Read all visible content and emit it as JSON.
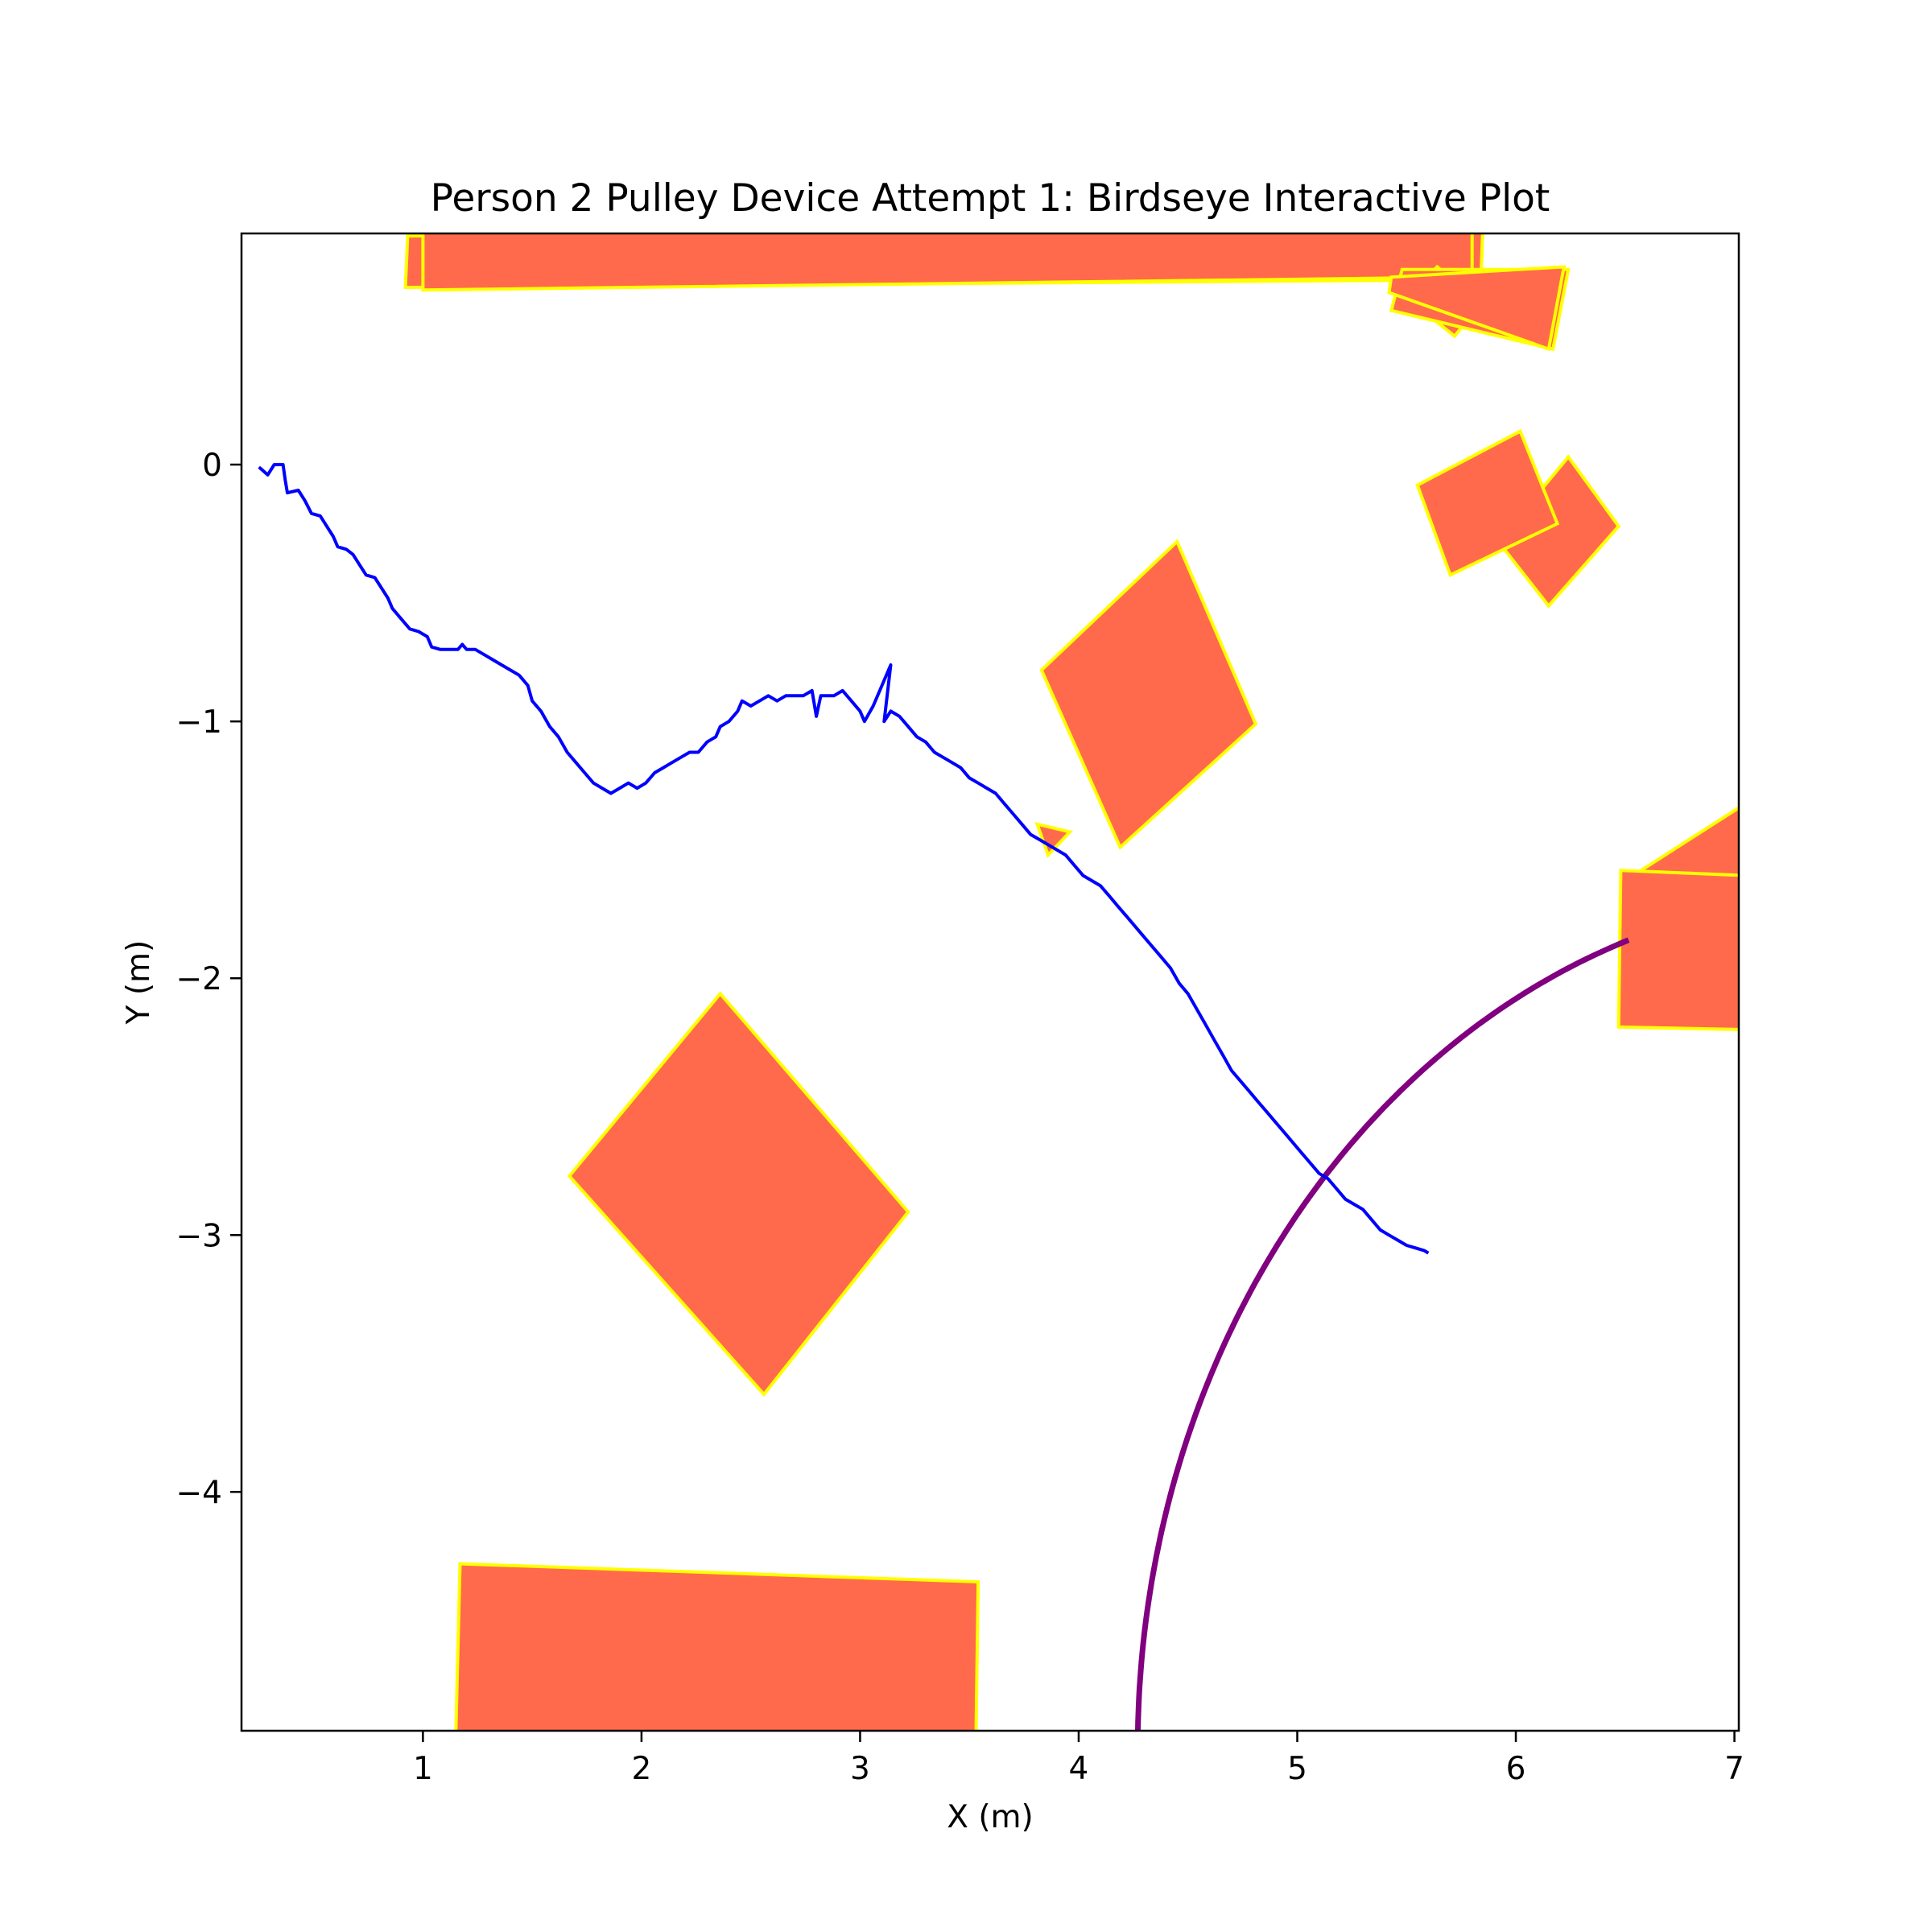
{
  "chart_data": {
    "type": "scatter",
    "title": "Person 2 Pulley Device Attempt 1: Birdseye Interactive Plot",
    "xlabel": "X (m)",
    "ylabel": "Y (m)",
    "xlim": [
      0.17,
      7.02
    ],
    "ylim": [
      -4.93,
      0.9
    ],
    "xticks": [
      1,
      2,
      3,
      4,
      5,
      6,
      7
    ],
    "yticks": [
      0,
      -1,
      -2,
      -3,
      -4
    ],
    "grid": false,
    "colors": {
      "obstacle_fill": "#ff6a4d",
      "obstacle_edge": "#ffff00",
      "path": "#0000ff",
      "arc": "#800080"
    },
    "obstacles": [
      [
        [
          0.93,
          0.89
        ],
        [
          5.85,
          0.95
        ],
        [
          5.84,
          0.72
        ],
        [
          0.92,
          0.69
        ]
      ],
      [
        [
          1.0,
          0.92
        ],
        [
          5.8,
          0.92
        ],
        [
          5.8,
          0.73
        ],
        [
          1.0,
          0.68
        ]
      ],
      [
        [
          5.5,
          0.65
        ],
        [
          5.72,
          0.5
        ],
        [
          5.84,
          0.63
        ],
        [
          5.64,
          0.77
        ]
      ],
      [
        [
          5.48,
          0.76
        ],
        [
          6.24,
          0.76
        ],
        [
          6.17,
          0.45
        ],
        [
          5.43,
          0.6
        ]
      ],
      [
        [
          5.43,
          0.73
        ],
        [
          6.22,
          0.77
        ],
        [
          6.15,
          0.45
        ],
        [
          5.42,
          0.67
        ]
      ],
      [
        [
          6.24,
          0.03
        ],
        [
          6.47,
          -0.24
        ],
        [
          6.15,
          -0.55
        ],
        [
          5.92,
          -0.3
        ]
      ],
      [
        [
          5.55,
          -0.08
        ],
        [
          6.02,
          0.13
        ],
        [
          6.19,
          -0.23
        ],
        [
          5.7,
          -0.43
        ]
      ],
      [
        [
          3.83,
          -0.8
        ],
        [
          4.45,
          -0.3
        ],
        [
          4.81,
          -1.01
        ],
        [
          4.19,
          -1.49
        ]
      ],
      [
        [
          3.81,
          -1.4
        ],
        [
          3.96,
          -1.43
        ],
        [
          3.86,
          -1.52
        ]
      ],
      [
        [
          1.67,
          -2.77
        ],
        [
          2.36,
          -2.06
        ],
        [
          3.22,
          -2.91
        ],
        [
          2.56,
          -3.62
        ]
      ],
      [
        [
          1.17,
          -4.28
        ],
        [
          3.54,
          -4.35
        ],
        [
          3.53,
          -4.96
        ],
        [
          1.15,
          -4.96
        ]
      ],
      [
        [
          6.5,
          -1.62
        ],
        [
          7.05,
          -1.32
        ],
        [
          7.05,
          -1.65
        ],
        [
          6.55,
          -1.7
        ]
      ],
      [
        [
          6.48,
          -1.58
        ],
        [
          7.05,
          -1.6
        ],
        [
          7.05,
          -2.2
        ],
        [
          6.47,
          -2.19
        ]
      ]
    ],
    "arc": {
      "center": [
        7.6,
        -5.0
      ],
      "radius": 3.33,
      "from_deg": 180,
      "to_deg": 109
    },
    "path": [
      [
        0.25,
        -0.01
      ],
      [
        0.29,
        -0.04
      ],
      [
        0.32,
        0.0
      ],
      [
        0.36,
        0.0
      ],
      [
        0.37,
        -0.06
      ],
      [
        0.38,
        -0.11
      ],
      [
        0.43,
        -0.1
      ],
      [
        0.46,
        -0.14
      ],
      [
        0.49,
        -0.19
      ],
      [
        0.53,
        -0.2
      ],
      [
        0.56,
        -0.24
      ],
      [
        0.59,
        -0.28
      ],
      [
        0.61,
        -0.32
      ],
      [
        0.65,
        -0.33
      ],
      [
        0.68,
        -0.35
      ],
      [
        0.71,
        -0.39
      ],
      [
        0.74,
        -0.43
      ],
      [
        0.78,
        -0.44
      ],
      [
        0.81,
        -0.48
      ],
      [
        0.84,
        -0.52
      ],
      [
        0.86,
        -0.56
      ],
      [
        0.9,
        -0.6
      ],
      [
        0.94,
        -0.64
      ],
      [
        0.98,
        -0.65
      ],
      [
        1.02,
        -0.67
      ],
      [
        1.04,
        -0.71
      ],
      [
        1.08,
        -0.72
      ],
      [
        1.12,
        -0.72
      ],
      [
        1.16,
        -0.72
      ],
      [
        1.18,
        -0.7
      ],
      [
        1.2,
        -0.72
      ],
      [
        1.24,
        -0.72
      ],
      [
        1.28,
        -0.74
      ],
      [
        1.32,
        -0.76
      ],
      [
        1.36,
        -0.78
      ],
      [
        1.4,
        -0.8
      ],
      [
        1.44,
        -0.82
      ],
      [
        1.48,
        -0.86
      ],
      [
        1.5,
        -0.92
      ],
      [
        1.54,
        -0.96
      ],
      [
        1.58,
        -1.02
      ],
      [
        1.62,
        -1.06
      ],
      [
        1.66,
        -1.12
      ],
      [
        1.7,
        -1.16
      ],
      [
        1.74,
        -1.2
      ],
      [
        1.78,
        -1.24
      ],
      [
        1.82,
        -1.26
      ],
      [
        1.86,
        -1.28
      ],
      [
        1.9,
        -1.26
      ],
      [
        1.94,
        -1.24
      ],
      [
        1.98,
        -1.26
      ],
      [
        2.02,
        -1.24
      ],
      [
        2.06,
        -1.2
      ],
      [
        2.1,
        -1.18
      ],
      [
        2.14,
        -1.16
      ],
      [
        2.18,
        -1.14
      ],
      [
        2.22,
        -1.12
      ],
      [
        2.26,
        -1.12
      ],
      [
        2.3,
        -1.08
      ],
      [
        2.34,
        -1.06
      ],
      [
        2.36,
        -1.02
      ],
      [
        2.4,
        -1.0
      ],
      [
        2.44,
        -0.96
      ],
      [
        2.46,
        -0.92
      ],
      [
        2.5,
        -0.94
      ],
      [
        2.54,
        -0.92
      ],
      [
        2.58,
        -0.9
      ],
      [
        2.62,
        -0.92
      ],
      [
        2.66,
        -0.9
      ],
      [
        2.7,
        -0.9
      ],
      [
        2.74,
        -0.9
      ],
      [
        2.78,
        -0.88
      ],
      [
        2.8,
        -0.98
      ],
      [
        2.82,
        -0.9
      ],
      [
        2.88,
        -0.9
      ],
      [
        2.92,
        -0.88
      ],
      [
        2.96,
        -0.92
      ],
      [
        3.0,
        -0.96
      ],
      [
        3.02,
        -1.0
      ],
      [
        3.06,
        -0.94
      ],
      [
        3.1,
        -0.86
      ],
      [
        3.14,
        -0.78
      ],
      [
        3.11,
        -1.0
      ],
      [
        3.14,
        -0.96
      ],
      [
        3.18,
        -0.98
      ],
      [
        3.22,
        -1.02
      ],
      [
        3.26,
        -1.06
      ],
      [
        3.3,
        -1.08
      ],
      [
        3.34,
        -1.12
      ],
      [
        3.38,
        -1.14
      ],
      [
        3.42,
        -1.16
      ],
      [
        3.46,
        -1.18
      ],
      [
        3.5,
        -1.22
      ],
      [
        3.54,
        -1.24
      ],
      [
        3.58,
        -1.26
      ],
      [
        3.62,
        -1.28
      ],
      [
        3.66,
        -1.32
      ],
      [
        3.7,
        -1.36
      ],
      [
        3.74,
        -1.4
      ],
      [
        3.78,
        -1.44
      ],
      [
        3.82,
        -1.46
      ],
      [
        3.86,
        -1.48
      ],
      [
        3.9,
        -1.5
      ],
      [
        3.94,
        -1.52
      ],
      [
        3.98,
        -1.56
      ],
      [
        4.02,
        -1.6
      ],
      [
        4.06,
        -1.62
      ],
      [
        4.1,
        -1.64
      ],
      [
        4.14,
        -1.68
      ],
      [
        4.18,
        -1.72
      ],
      [
        4.22,
        -1.76
      ],
      [
        4.26,
        -1.8
      ],
      [
        4.3,
        -1.84
      ],
      [
        4.34,
        -1.88
      ],
      [
        4.38,
        -1.92
      ],
      [
        4.42,
        -1.96
      ],
      [
        4.46,
        -2.02
      ],
      [
        4.5,
        -2.06
      ],
      [
        4.54,
        -2.12
      ],
      [
        4.58,
        -2.18
      ],
      [
        4.62,
        -2.24
      ],
      [
        4.66,
        -2.3
      ],
      [
        4.7,
        -2.36
      ],
      [
        4.74,
        -2.4
      ],
      [
        4.78,
        -2.44
      ],
      [
        4.82,
        -2.48
      ],
      [
        4.86,
        -2.52
      ],
      [
        4.9,
        -2.56
      ],
      [
        4.94,
        -2.6
      ],
      [
        4.98,
        -2.64
      ],
      [
        5.02,
        -2.68
      ],
      [
        5.06,
        -2.72
      ],
      [
        5.1,
        -2.76
      ],
      [
        5.14,
        -2.78
      ],
      [
        5.18,
        -2.82
      ],
      [
        5.22,
        -2.86
      ],
      [
        5.26,
        -2.88
      ],
      [
        5.3,
        -2.9
      ],
      [
        5.34,
        -2.94
      ],
      [
        5.38,
        -2.98
      ],
      [
        5.42,
        -3.0
      ],
      [
        5.46,
        -3.02
      ],
      [
        5.5,
        -3.04
      ],
      [
        5.54,
        -3.05
      ],
      [
        5.58,
        -3.06
      ],
      [
        5.6,
        -3.07
      ]
    ]
  }
}
